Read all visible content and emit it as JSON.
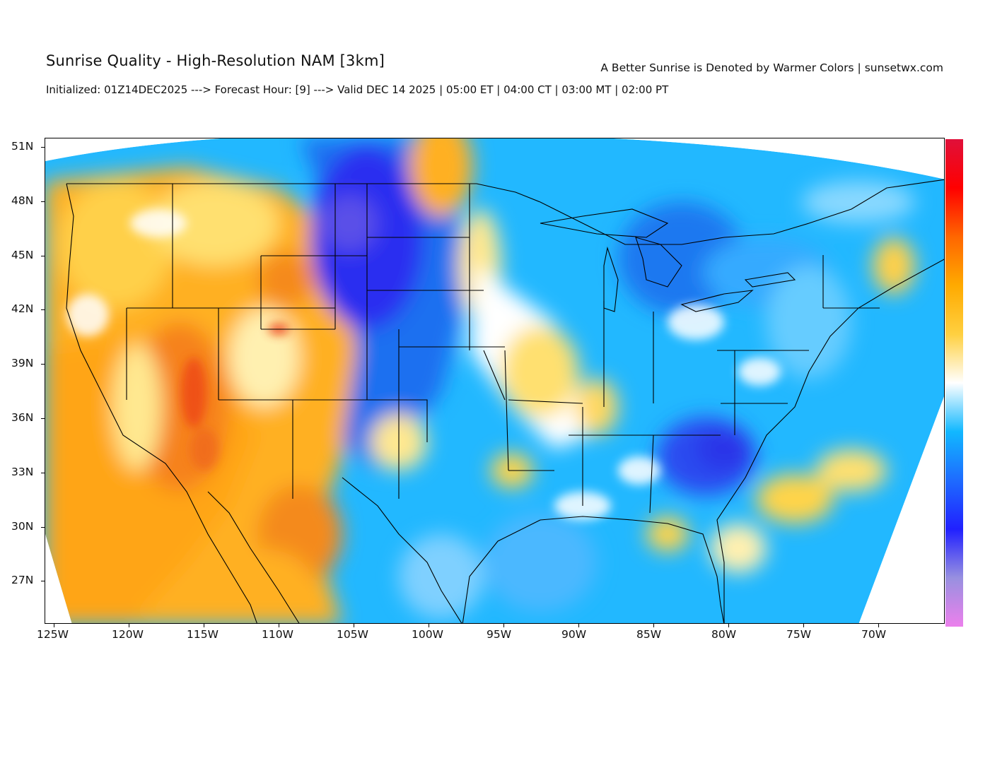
{
  "header": {
    "title": "Sunrise Quality - High-Resolution NAM [3km]",
    "credit": "A Better Sunrise is Denoted by Warmer Colors | sunsetwx.com",
    "subtitle": "Initialized: 01Z14DEC2025 ---> Forecast Hour: [9] ---> Valid DEC 14 2025 | 05:00 ET | 04:00 CT | 03:00 MT | 02:00 PT"
  },
  "map": {
    "lat_labels": [
      "51N",
      "48N",
      "45N",
      "42N",
      "39N",
      "36N",
      "33N",
      "30N",
      "27N"
    ],
    "lon_labels": [
      "125W",
      "120W",
      "115W",
      "110W",
      "105W",
      "100W",
      "95W",
      "90W",
      "85W",
      "80W",
      "75W",
      "70W"
    ]
  },
  "colorbar": {
    "colors": [
      "#ec80ec",
      "#9890e0",
      "#2020ff",
      "#1e6bff",
      "#11b8ff",
      "#ffffff",
      "#ffd040",
      "#ffaa00",
      "#ff6600",
      "#ff0000",
      "#e0103a"
    ]
  },
  "colors": {
    "blue_dark": "#2a35e8",
    "blue_mid": "#1e8cff",
    "blue_light": "#22c0ff",
    "white": "#ffffff",
    "yellow": "#ffd448",
    "orange": "#ffaa1c",
    "red_orange": "#f26a1a"
  }
}
